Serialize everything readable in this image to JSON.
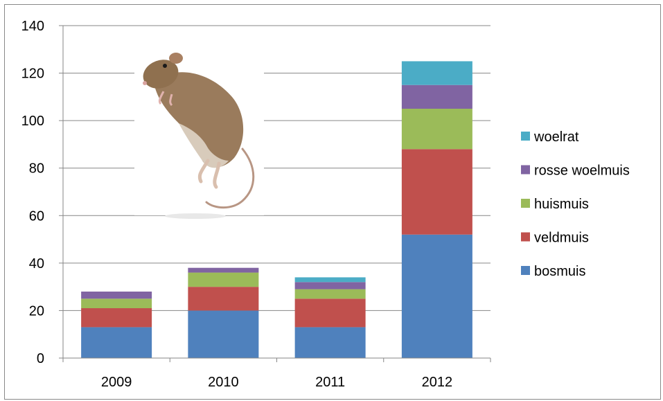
{
  "chart_data": {
    "type": "bar",
    "stacked": true,
    "categories": [
      "2009",
      "2010",
      "2011",
      "2012"
    ],
    "series": [
      {
        "name": "bosmuis",
        "color": "#4F81BD",
        "values": [
          13,
          20,
          13,
          52
        ]
      },
      {
        "name": "veldmuis",
        "color": "#C0504D",
        "values": [
          8,
          10,
          12,
          36
        ]
      },
      {
        "name": "huismuis",
        "color": "#9BBB59",
        "values": [
          4,
          6,
          4,
          17
        ]
      },
      {
        "name": "rosse woelmuis",
        "color": "#8064A2",
        "values": [
          3,
          2,
          3,
          10
        ]
      },
      {
        "name": "woelrat",
        "color": "#4BACC6",
        "values": [
          0,
          0,
          2,
          10
        ]
      }
    ],
    "ylim": [
      0,
      140
    ],
    "yticks": [
      "0",
      "20",
      "40",
      "60",
      "80",
      "100",
      "120",
      "140"
    ],
    "grid": true,
    "legend_position": "right",
    "title": "",
    "xlabel": "",
    "ylabel": "",
    "inset_image": "mouse-photo"
  }
}
